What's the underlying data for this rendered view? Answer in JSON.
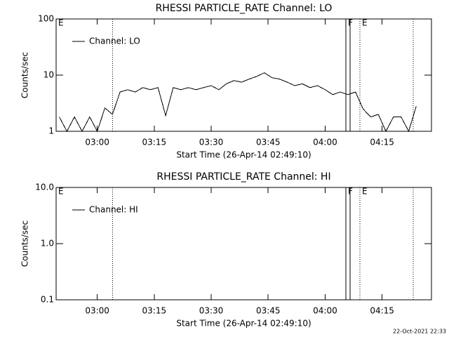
{
  "chart_data": [
    {
      "type": "line",
      "title": "RHESSI PARTICLE_RATE Channel: LO",
      "xlabel": "Start Time (26-Apr-14 02:49:10)",
      "ylabel": "Counts/sec",
      "log_y": true,
      "legend": "upper left",
      "xlim": [
        "02:49:10",
        "04:28:00"
      ],
      "xticks": [
        "03:00",
        "03:15",
        "03:30",
        "03:45",
        "04:00",
        "04:15"
      ],
      "ylim": [
        1,
        100
      ],
      "yticks": [
        1,
        10,
        100
      ],
      "x": [
        "02:50",
        "02:52",
        "02:54",
        "02:56",
        "02:58",
        "03:00",
        "03:02",
        "03:04",
        "03:06",
        "03:08",
        "03:10",
        "03:12",
        "03:14",
        "03:16",
        "03:18",
        "03:20",
        "03:22",
        "03:24",
        "03:26",
        "03:28",
        "03:30",
        "03:32",
        "03:34",
        "03:36",
        "03:38",
        "03:40",
        "03:42",
        "03:44",
        "03:46",
        "03:48",
        "03:50",
        "03:52",
        "03:54",
        "03:56",
        "03:58",
        "04:00",
        "04:02",
        "04:04",
        "04:06",
        "04:08",
        "04:10",
        "04:12",
        "04:14",
        "04:16",
        "04:18",
        "04:20",
        "04:22",
        "04:24"
      ],
      "series": [
        {
          "name": "Channel: LO",
          "color": "#000000",
          "values": [
            1.8,
            1,
            1.8,
            1,
            1.8,
            1,
            2.6,
            2,
            5,
            5.5,
            5,
            6,
            5.5,
            6,
            1.9,
            6,
            5.5,
            6,
            5.5,
            6,
            6.5,
            5.5,
            7,
            8,
            7.5,
            8.5,
            9.5,
            11,
            9,
            8.5,
            7.5,
            6.5,
            7,
            6,
            6.5,
            5.5,
            4.5,
            5,
            4.5,
            5,
            2.5,
            1.8,
            2,
            1,
            1.8,
            1.8,
            1,
            2.8
          ]
        }
      ],
      "markers": [
        {
          "x": "02:49:10",
          "style": "none",
          "label": "E"
        },
        {
          "x": "03:04",
          "style": "dotted"
        },
        {
          "x": "04:05:28",
          "style": "solid",
          "label": "F"
        },
        {
          "x": "04:06:34",
          "style": "solid"
        },
        {
          "x": "04:09:09",
          "style": "dotted",
          "label": "E"
        },
        {
          "x": "04:23:12",
          "style": "dotted"
        }
      ]
    },
    {
      "type": "line",
      "title": "RHESSI PARTICLE_RATE Channel: HI",
      "xlabel": "Start Time (26-Apr-14 02:49:10)",
      "ylabel": "Counts/sec",
      "log_y": true,
      "legend": "upper left",
      "xlim": [
        "02:49:10",
        "04:28:00"
      ],
      "xticks": [
        "03:00",
        "03:15",
        "03:30",
        "03:45",
        "04:00",
        "04:15"
      ],
      "ylim": [
        0.1,
        10
      ],
      "yticks": [
        0.1,
        {
          "value": 1,
          "label": "1.0"
        },
        {
          "value": 10,
          "label": "10.0"
        }
      ],
      "series": [
        {
          "name": "Channel: HI",
          "color": "#000000"
        }
      ],
      "markers": [
        {
          "x": "02:49:10",
          "style": "none",
          "label": "E"
        },
        {
          "x": "03:04",
          "style": "dotted"
        },
        {
          "x": "04:05:28",
          "style": "solid",
          "label": "F"
        },
        {
          "x": "04:06:34",
          "style": "solid"
        },
        {
          "x": "04:09:09",
          "style": "dotted",
          "label": "E"
        },
        {
          "x": "04:23:12",
          "style": "dotted"
        }
      ]
    }
  ],
  "footer": "22-Oct-2021 22:33"
}
